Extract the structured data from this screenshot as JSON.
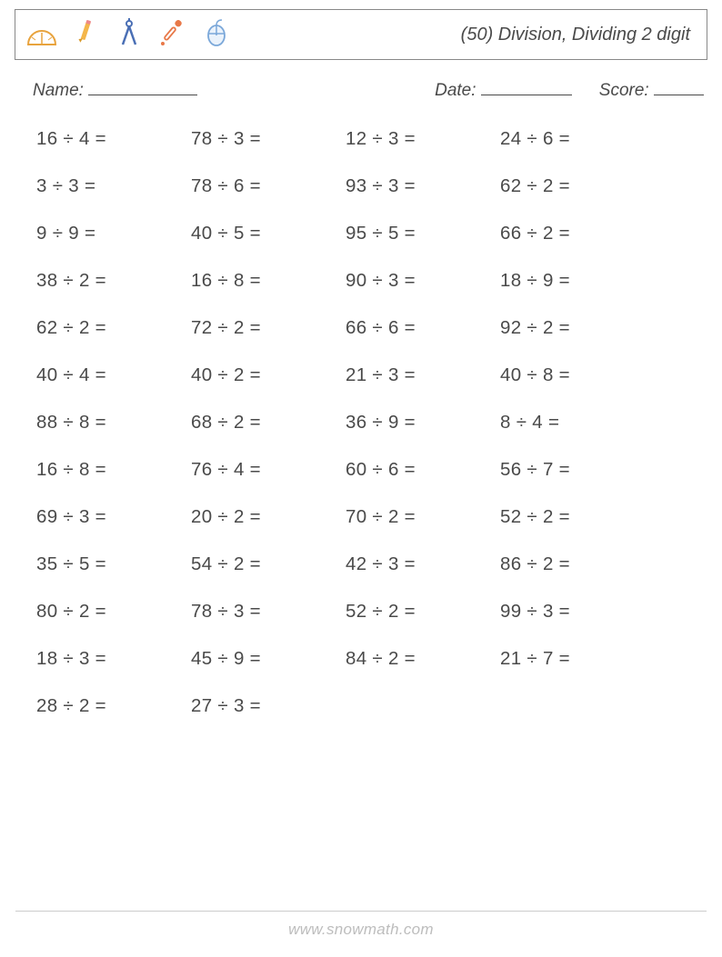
{
  "header": {
    "title": "(50) Division, Dividing 2 digit"
  },
  "info": {
    "name_label": "Name:",
    "date_label": "Date:",
    "score_label": "Score:"
  },
  "problems": [
    [
      "16 ÷ 4 =",
      "78 ÷ 3 =",
      "12 ÷ 3 =",
      "24 ÷ 6 ="
    ],
    [
      "3 ÷ 3 =",
      "78 ÷ 6 =",
      "93 ÷ 3 =",
      "62 ÷ 2 ="
    ],
    [
      "9 ÷ 9 =",
      "40 ÷ 5 =",
      "95 ÷ 5 =",
      "66 ÷ 2 ="
    ],
    [
      "38 ÷ 2 =",
      "16 ÷ 8 =",
      "90 ÷ 3 =",
      "18 ÷ 9 ="
    ],
    [
      "62 ÷ 2 =",
      "72 ÷ 2 =",
      "66 ÷ 6 =",
      "92 ÷ 2 ="
    ],
    [
      "40 ÷ 4 =",
      "40 ÷ 2 =",
      "21 ÷ 3 =",
      "40 ÷ 8 ="
    ],
    [
      "88 ÷ 8 =",
      "68 ÷ 2 =",
      "36 ÷ 9 =",
      "8 ÷ 4 ="
    ],
    [
      "16 ÷ 8 =",
      "76 ÷ 4 =",
      "60 ÷ 6 =",
      "56 ÷ 7 ="
    ],
    [
      "69 ÷ 3 =",
      "20 ÷ 2 =",
      "70 ÷ 2 =",
      "52 ÷ 2 ="
    ],
    [
      "35 ÷ 5 =",
      "54 ÷ 2 =",
      "42 ÷ 3 =",
      "86 ÷ 2 ="
    ],
    [
      "80 ÷ 2 =",
      "78 ÷ 3 =",
      "52 ÷ 2 =",
      "99 ÷ 3 ="
    ],
    [
      "18 ÷ 3 =",
      "45 ÷ 9 =",
      "84 ÷ 2 =",
      "21 ÷ 7 ="
    ],
    [
      "28 ÷ 2 =",
      "27 ÷ 3 ="
    ]
  ],
  "footer": "www.snowmath.com"
}
